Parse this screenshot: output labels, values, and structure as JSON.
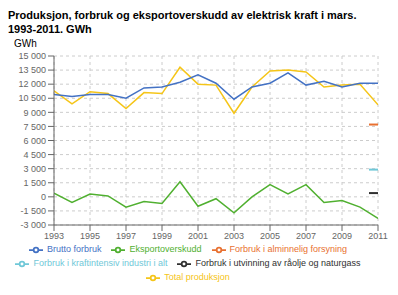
{
  "chart_data": {
    "type": "line",
    "title": "Produksjon, forbruk og eksportoverskudd av elektrisk kraft i mars.",
    "subtitle": "1993-2011. GWh",
    "y_label": "GWh",
    "x": [
      1993,
      1994,
      1995,
      1996,
      1997,
      1998,
      1999,
      2000,
      2001,
      2002,
      2003,
      2004,
      2005,
      2006,
      2007,
      2008,
      2009,
      2010,
      2011
    ],
    "series": [
      {
        "name": "Total produksjon",
        "color": "#f5c518",
        "values": [
          11300,
          9900,
          11200,
          11000,
          9400,
          11100,
          11000,
          13800,
          12000,
          11900,
          8900,
          11700,
          13400,
          13500,
          13300,
          11700,
          11900,
          12000,
          9800
        ]
      },
      {
        "name": "Brutto forbruk",
        "color": "#4472c4",
        "values": [
          10900,
          10700,
          10900,
          10900,
          10500,
          11600,
          11700,
          12200,
          13000,
          12100,
          10400,
          11700,
          12100,
          13200,
          11900,
          12300,
          11700,
          12100,
          12100
        ]
      },
      {
        "name": "Forbruk i alminnelig forsyning",
        "color": "#e87030",
        "x": [
          2010.5,
          2011
        ],
        "values": [
          7700,
          7700
        ]
      },
      {
        "name": "Forbruk i kraftintensiv industri i alt",
        "color": "#70c8d8",
        "x": [
          2010.5,
          2011
        ],
        "values": [
          2900,
          2900
        ]
      },
      {
        "name": "Forbruk i utvinning av råolje og naturgass",
        "color": "#303030",
        "x": [
          2010.5,
          2011
        ],
        "values": [
          400,
          400
        ]
      },
      {
        "name": "Eksportoverskudd",
        "color": "#50b030",
        "values": [
          400,
          -600,
          300,
          100,
          -1100,
          -500,
          -700,
          1600,
          -1000,
          -200,
          -1700,
          0,
          1300,
          300,
          1300,
          -600,
          -400,
          -1100,
          -2300
        ]
      }
    ],
    "xlim": [
      1993,
      2011
    ],
    "xticks": [
      1993,
      1995,
      1997,
      1999,
      2001,
      2003,
      2005,
      2007,
      2009,
      2011
    ],
    "ylim": [
      -3000,
      15000
    ],
    "yticks": [
      {
        "value": -3000,
        "label": "-3 000"
      },
      {
        "value": -1500,
        "label": "-1 500"
      },
      0,
      {
        "value": 1500,
        "label": "1 500"
      },
      {
        "value": 3000,
        "label": "3 000"
      },
      {
        "value": 4500,
        "label": "4 500"
      },
      {
        "value": 6000,
        "label": "6 000"
      },
      {
        "value": 7500,
        "label": "7 500"
      },
      {
        "value": 9000,
        "label": "9 000"
      },
      {
        "value": 10500,
        "label": "10 500"
      },
      {
        "value": 12000,
        "label": "12 000"
      },
      {
        "value": 13500,
        "label": "13 500"
      },
      {
        "value": 15000,
        "label": "15 000"
      }
    ],
    "grid": true,
    "legend": "bottom"
  }
}
